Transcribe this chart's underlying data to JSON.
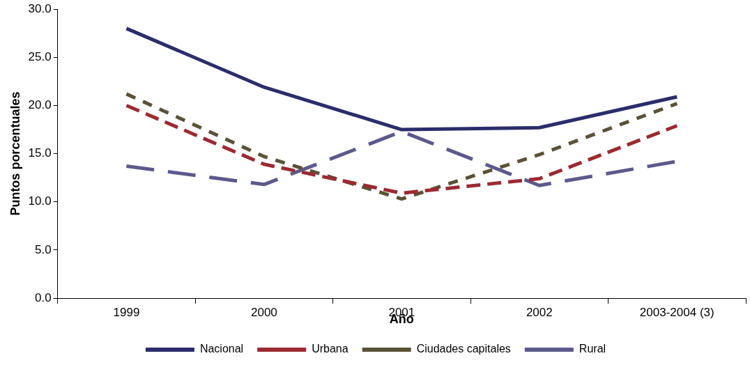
{
  "chart_data": {
    "type": "line",
    "xlabel": "Año",
    "ylabel": "Puntos porcentuales",
    "categories": [
      "1999",
      "2000",
      "2001",
      "2002",
      "2003-2004 (3)"
    ],
    "series": [
      {
        "name": "Nacional",
        "color": "#2b2d6b",
        "line_style": "solid",
        "values": [
          28.0,
          21.9,
          17.5,
          17.7,
          20.9
        ]
      },
      {
        "name": "Urbana",
        "color": "#9b2a33",
        "line_style": "dashed",
        "values": [
          20.0,
          13.9,
          10.9,
          12.4,
          17.9
        ]
      },
      {
        "name": "Ciudades capitales",
        "color": "#5a5236",
        "line_style": "dashed",
        "values": [
          21.2,
          14.7,
          10.3,
          14.9,
          20.2
        ]
      },
      {
        "name": "Rural",
        "color": "#5c5a8c",
        "line_style": "dashed",
        "values": [
          13.7,
          11.8,
          17.3,
          11.7,
          14.2
        ]
      }
    ],
    "ylim": [
      0,
      30
    ],
    "yticks": [
      {
        "value": 0,
        "label": "0.0"
      },
      {
        "value": 5,
        "label": "5.0"
      },
      {
        "value": 10,
        "label": "10.0"
      },
      {
        "value": 15,
        "label": "15.0"
      },
      {
        "value": 20,
        "label": "20.0"
      },
      {
        "value": 25,
        "label": "25.0"
      },
      {
        "value": 30,
        "label": "30.0"
      }
    ],
    "legend": "bottom",
    "marker": "none",
    "grid": false
  }
}
